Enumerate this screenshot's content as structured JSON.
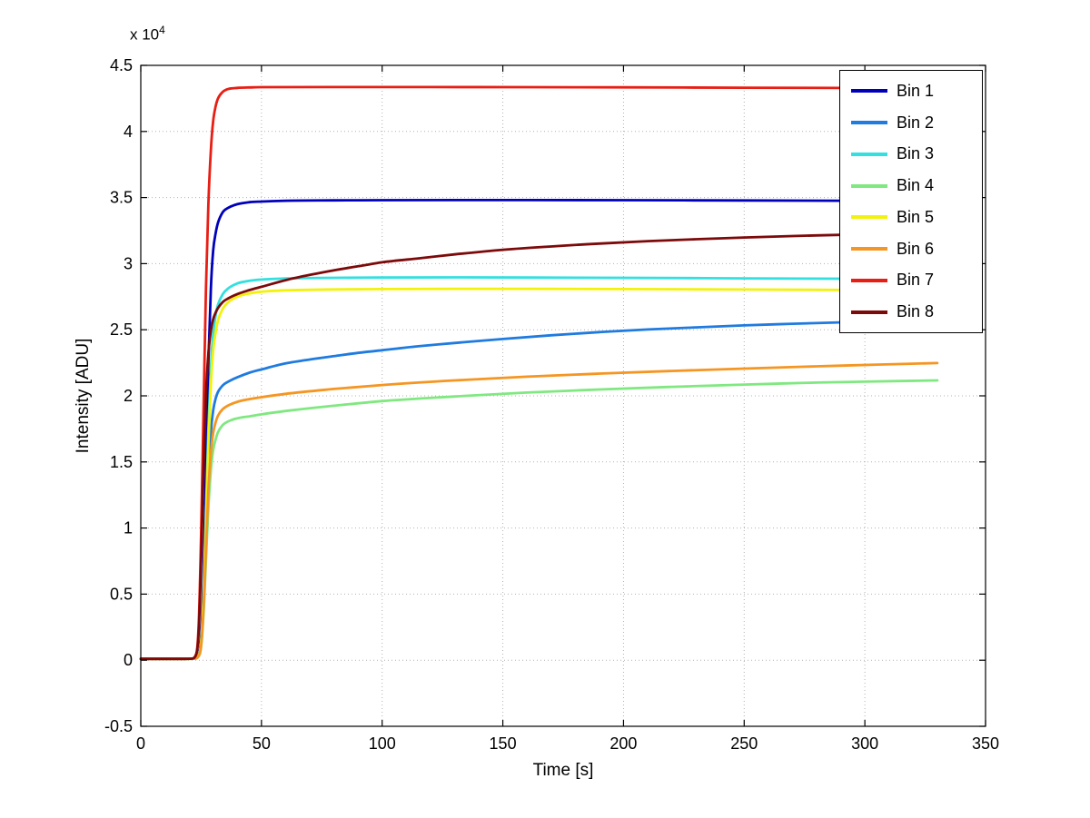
{
  "chart_data": {
    "type": "line",
    "title": "",
    "xlabel": "Time [s]",
    "ylabel": "Intensity [ADU]",
    "y_exp_prefix": "x 10",
    "y_exp_sup": "4",
    "xlim": [
      0,
      350
    ],
    "ylim": [
      -5000,
      45000
    ],
    "xticks": [
      0,
      50,
      100,
      150,
      200,
      250,
      300,
      350
    ],
    "ytick_values": [
      -5000,
      0,
      5000,
      10000,
      15000,
      20000,
      25000,
      30000,
      35000,
      40000,
      45000
    ],
    "ytick_labels": [
      "-0.5",
      "0",
      "0.5",
      "1",
      "1.5",
      "2",
      "2.5",
      "3",
      "3.5",
      "4",
      "4.5"
    ],
    "grid": true,
    "legend_position": "top-right",
    "series": [
      {
        "name": "Bin 1",
        "color": "#0000bb",
        "points": [
          [
            0,
            100
          ],
          [
            10,
            100
          ],
          [
            18,
            100
          ],
          [
            22,
            120
          ],
          [
            24,
            400
          ],
          [
            25,
            1800
          ],
          [
            26,
            6500
          ],
          [
            27,
            14500
          ],
          [
            28,
            22500
          ],
          [
            29,
            28000
          ],
          [
            30,
            31000
          ],
          [
            31,
            32300
          ],
          [
            32,
            33100
          ],
          [
            34,
            33900
          ],
          [
            36,
            34200
          ],
          [
            40,
            34500
          ],
          [
            45,
            34650
          ],
          [
            50,
            34700
          ],
          [
            60,
            34760
          ],
          [
            80,
            34790
          ],
          [
            100,
            34800
          ],
          [
            130,
            34810
          ],
          [
            160,
            34810
          ],
          [
            200,
            34800
          ],
          [
            250,
            34780
          ],
          [
            293,
            34760
          ]
        ]
      },
      {
        "name": "Bin 2",
        "color": "#1f7bdf",
        "points": [
          [
            0,
            100
          ],
          [
            10,
            100
          ],
          [
            18,
            100
          ],
          [
            22,
            120
          ],
          [
            24,
            350
          ],
          [
            25,
            1200
          ],
          [
            26,
            4200
          ],
          [
            27,
            9000
          ],
          [
            28,
            14000
          ],
          [
            29,
            17200
          ],
          [
            30,
            18900
          ],
          [
            31,
            19800
          ],
          [
            32,
            20300
          ],
          [
            34,
            20800
          ],
          [
            36,
            21050
          ],
          [
            40,
            21400
          ],
          [
            45,
            21750
          ],
          [
            50,
            22000
          ],
          [
            60,
            22450
          ],
          [
            70,
            22750
          ],
          [
            80,
            23000
          ],
          [
            90,
            23250
          ],
          [
            100,
            23450
          ],
          [
            115,
            23750
          ],
          [
            130,
            24000
          ],
          [
            150,
            24300
          ],
          [
            170,
            24580
          ],
          [
            190,
            24820
          ],
          [
            210,
            25020
          ],
          [
            230,
            25180
          ],
          [
            250,
            25330
          ],
          [
            270,
            25450
          ],
          [
            293,
            25570
          ]
        ]
      },
      {
        "name": "Bin 3",
        "color": "#33e0e0",
        "points": [
          [
            0,
            100
          ],
          [
            10,
            100
          ],
          [
            18,
            100
          ],
          [
            22,
            120
          ],
          [
            24,
            380
          ],
          [
            25,
            1400
          ],
          [
            26,
            5000
          ],
          [
            27,
            11000
          ],
          [
            28,
            17500
          ],
          [
            29,
            22000
          ],
          [
            30,
            24700
          ],
          [
            31,
            26100
          ],
          [
            32,
            26900
          ],
          [
            34,
            27700
          ],
          [
            36,
            28100
          ],
          [
            40,
            28500
          ],
          [
            45,
            28700
          ],
          [
            50,
            28800
          ],
          [
            60,
            28880
          ],
          [
            80,
            28930
          ],
          [
            100,
            28950
          ],
          [
            130,
            28960
          ],
          [
            160,
            28950
          ],
          [
            200,
            28930
          ],
          [
            250,
            28890
          ],
          [
            293,
            28860
          ]
        ]
      },
      {
        "name": "Bin 4",
        "color": "#80e880",
        "points": [
          [
            0,
            100
          ],
          [
            10,
            100
          ],
          [
            18,
            100
          ],
          [
            22,
            110
          ],
          [
            24,
            300
          ],
          [
            25,
            1000
          ],
          [
            26,
            3500
          ],
          [
            27,
            7500
          ],
          [
            28,
            11500
          ],
          [
            29,
            14300
          ],
          [
            30,
            15900
          ],
          [
            31,
            16700
          ],
          [
            32,
            17250
          ],
          [
            34,
            17800
          ],
          [
            36,
            18050
          ],
          [
            40,
            18300
          ],
          [
            45,
            18450
          ],
          [
            50,
            18600
          ],
          [
            60,
            18850
          ],
          [
            80,
            19250
          ],
          [
            100,
            19600
          ],
          [
            130,
            19950
          ],
          [
            160,
            20250
          ],
          [
            190,
            20480
          ],
          [
            220,
            20680
          ],
          [
            250,
            20850
          ],
          [
            280,
            21000
          ],
          [
            305,
            21090
          ],
          [
            330,
            21170
          ]
        ]
      },
      {
        "name": "Bin 5",
        "color": "#f2f20c",
        "points": [
          [
            0,
            100
          ],
          [
            10,
            100
          ],
          [
            18,
            100
          ],
          [
            22,
            120
          ],
          [
            24,
            360
          ],
          [
            25,
            1300
          ],
          [
            26,
            4700
          ],
          [
            27,
            10300
          ],
          [
            28,
            16300
          ],
          [
            29,
            20700
          ],
          [
            30,
            23400
          ],
          [
            31,
            24800
          ],
          [
            32,
            25700
          ],
          [
            34,
            26600
          ],
          [
            36,
            27050
          ],
          [
            40,
            27500
          ],
          [
            45,
            27750
          ],
          [
            50,
            27880
          ],
          [
            60,
            27980
          ],
          [
            80,
            28050
          ],
          [
            100,
            28080
          ],
          [
            130,
            28100
          ],
          [
            160,
            28100
          ],
          [
            200,
            28080
          ],
          [
            250,
            28040
          ],
          [
            293,
            28010
          ]
        ]
      },
      {
        "name": "Bin 6",
        "color": "#f59622",
        "points": [
          [
            0,
            100
          ],
          [
            10,
            100
          ],
          [
            18,
            100
          ],
          [
            22,
            110
          ],
          [
            24,
            320
          ],
          [
            25,
            1100
          ],
          [
            26,
            3900
          ],
          [
            27,
            8300
          ],
          [
            28,
            12800
          ],
          [
            29,
            15600
          ],
          [
            30,
            17200
          ],
          [
            31,
            18000
          ],
          [
            32,
            18500
          ],
          [
            34,
            19000
          ],
          [
            36,
            19250
          ],
          [
            40,
            19550
          ],
          [
            45,
            19750
          ],
          [
            50,
            19900
          ],
          [
            60,
            20150
          ],
          [
            80,
            20520
          ],
          [
            100,
            20820
          ],
          [
            130,
            21170
          ],
          [
            160,
            21450
          ],
          [
            190,
            21680
          ],
          [
            220,
            21880
          ],
          [
            250,
            22060
          ],
          [
            280,
            22230
          ],
          [
            305,
            22360
          ],
          [
            330,
            22480
          ]
        ]
      },
      {
        "name": "Bin 7",
        "color": "#e81e14",
        "points": [
          [
            0,
            100
          ],
          [
            10,
            100
          ],
          [
            18,
            100
          ],
          [
            21,
            120
          ],
          [
            23,
            500
          ],
          [
            24,
            2800
          ],
          [
            25,
            9500
          ],
          [
            26,
            19000
          ],
          [
            27,
            28000
          ],
          [
            28,
            34500
          ],
          [
            29,
            38500
          ],
          [
            30,
            40800
          ],
          [
            31,
            41900
          ],
          [
            32,
            42500
          ],
          [
            34,
            43000
          ],
          [
            36,
            43200
          ],
          [
            40,
            43300
          ],
          [
            45,
            43330
          ],
          [
            50,
            43350
          ],
          [
            80,
            43360
          ],
          [
            120,
            43360
          ],
          [
            160,
            43350
          ],
          [
            200,
            43340
          ],
          [
            250,
            43310
          ],
          [
            293,
            43290
          ]
        ]
      },
      {
        "name": "Bin 8",
        "color": "#7d0a0a",
        "points": [
          [
            0,
            100
          ],
          [
            10,
            100
          ],
          [
            18,
            100
          ],
          [
            21,
            120
          ],
          [
            23,
            450
          ],
          [
            24,
            2200
          ],
          [
            25,
            7500
          ],
          [
            26,
            14500
          ],
          [
            27,
            20000
          ],
          [
            28,
            23200
          ],
          [
            29,
            24900
          ],
          [
            30,
            25800
          ],
          [
            31,
            26300
          ],
          [
            32,
            26650
          ],
          [
            34,
            27100
          ],
          [
            36,
            27350
          ],
          [
            40,
            27700
          ],
          [
            45,
            28000
          ],
          [
            50,
            28250
          ],
          [
            60,
            28750
          ],
          [
            70,
            29150
          ],
          [
            80,
            29500
          ],
          [
            90,
            29800
          ],
          [
            100,
            30100
          ],
          [
            115,
            30400
          ],
          [
            130,
            30700
          ],
          [
            150,
            31050
          ],
          [
            170,
            31300
          ],
          [
            190,
            31520
          ],
          [
            210,
            31700
          ],
          [
            230,
            31850
          ],
          [
            250,
            31980
          ],
          [
            270,
            32090
          ],
          [
            290,
            32180
          ],
          [
            310,
            32250
          ],
          [
            330,
            32300
          ]
        ]
      }
    ]
  }
}
